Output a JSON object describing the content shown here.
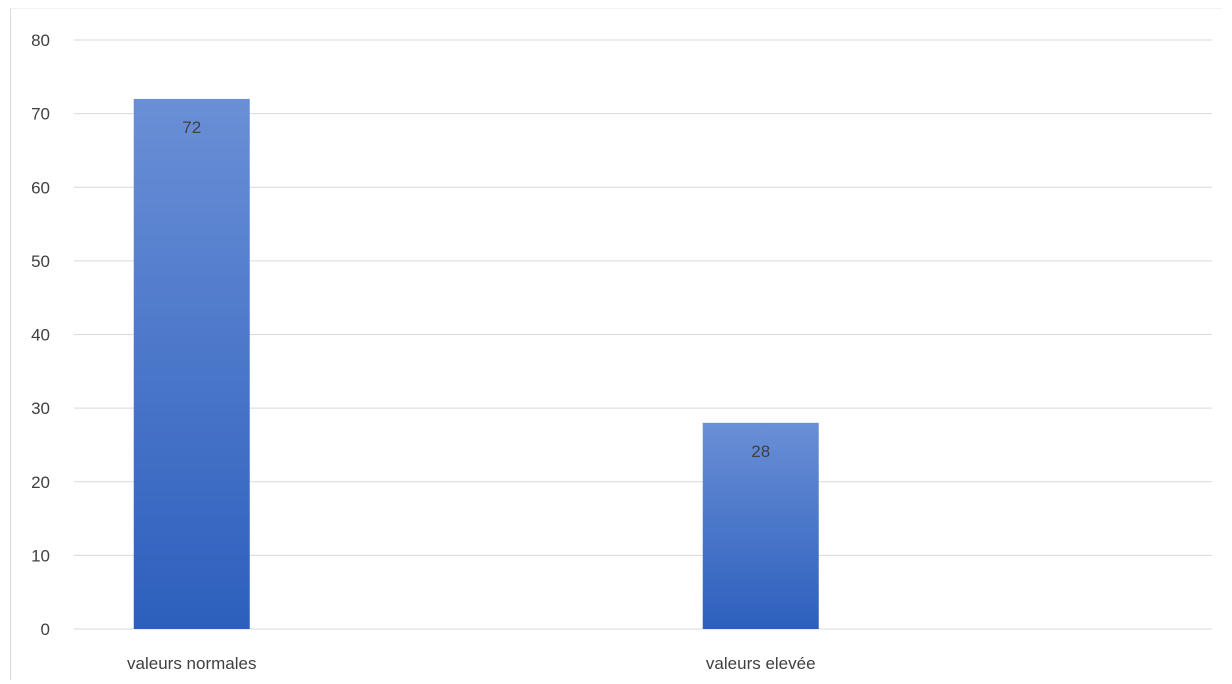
{
  "chart_data": {
    "type": "bar",
    "categories": [
      "valeurs normales",
      "valeurs elevée"
    ],
    "values": [
      72,
      28
    ],
    "data_labels": [
      "72",
      "28"
    ],
    "title": "",
    "xlabel": "",
    "ylabel": "",
    "ylim": [
      0,
      80
    ],
    "yticks": [
      0,
      10,
      20,
      30,
      40,
      50,
      60,
      70,
      80
    ],
    "grid": true,
    "legend": "none",
    "colors": {
      "bar_top": "#6a8fd6",
      "bar_bottom": "#2c5fbd",
      "grid": "#d9d9d9",
      "text": "#404040"
    }
  }
}
